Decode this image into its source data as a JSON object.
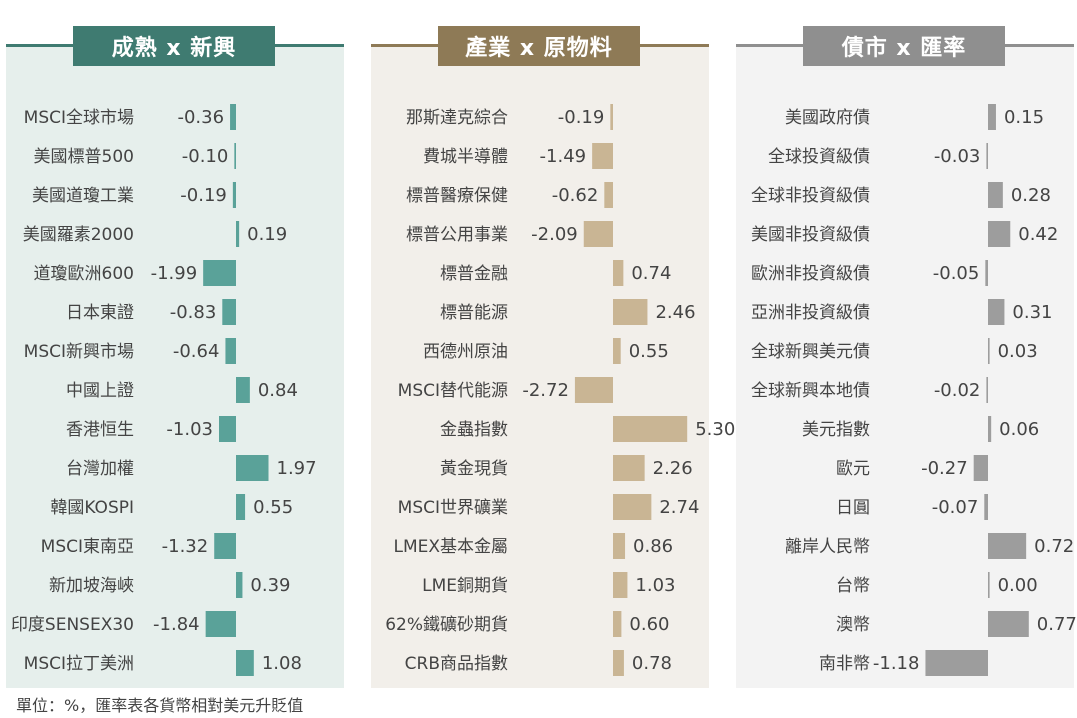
{
  "colors": {
    "panel1_accent": "#3f7b71",
    "panel1_bar": "#5aa299",
    "panel1_bg": "#e6efec",
    "panel2_accent": "#8e7a56",
    "panel2_bar": "#c9b594",
    "panel2_bg": "#f2efea",
    "panel3_accent": "#8f8f8f",
    "panel3_bar": "#9d9d9d",
    "panel3_bg": "#f3f3f3"
  },
  "footnote": "單位：%，匯率表各貨幣相對美元升貶值",
  "chart_data": [
    {
      "type": "bar",
      "orientation": "horizontal",
      "title": "成熟 x 新興",
      "categories": [
        "MSCI全球市場",
        "美國標普500",
        "美國道瓊工業",
        "美國羅素2000",
        "道瓊歐洲600",
        "日本東證",
        "MSCI新興市場",
        "中國上證",
        "香港恒生",
        "台灣加權",
        "韓國KOSPI",
        "MSCI東南亞",
        "新加坡海峽",
        "印度SENSEX30",
        "MSCI拉丁美洲"
      ],
      "values": [
        -0.36,
        -0.1,
        -0.19,
        0.19,
        -1.99,
        -0.83,
        -0.64,
        0.84,
        -1.03,
        1.97,
        0.55,
        -1.32,
        0.39,
        -1.84,
        1.08
      ],
      "labels": [
        "-0.36",
        "-0.10",
        "-0.19",
        "0.19",
        "-1.99",
        "-0.83",
        "-0.64",
        "0.84",
        "-1.03",
        "1.97",
        "0.55",
        "-1.32",
        "0.39",
        "-1.84",
        "1.08"
      ]
    },
    {
      "type": "bar",
      "orientation": "horizontal",
      "title": "產業 x 原物料",
      "categories": [
        "那斯達克綜合",
        "費城半導體",
        "標普醫療保健",
        "標普公用事業",
        "標普金融",
        "標普能源",
        "西德州原油",
        "MSCI替代能源",
        "金蟲指數",
        "黃金現貨",
        "MSCI世界礦業",
        "LMEX基本金屬",
        "LME銅期貨",
        "62%鐵礦砂期貨",
        "CRB商品指數"
      ],
      "values": [
        -0.19,
        -1.49,
        -0.62,
        -2.09,
        0.74,
        2.46,
        0.55,
        -2.72,
        5.3,
        2.26,
        2.74,
        0.86,
        1.03,
        0.6,
        0.78
      ],
      "labels": [
        "-0.19",
        "-1.49",
        "-0.62",
        "-2.09",
        "0.74",
        "2.46",
        "0.55",
        "-2.72",
        "5.30",
        "2.26",
        "2.74",
        "0.86",
        "1.03",
        "0.60",
        "0.78"
      ]
    },
    {
      "type": "bar",
      "orientation": "horizontal",
      "title": "債市 x 匯率",
      "categories": [
        "美國政府債",
        "全球投資級債",
        "全球非投資級債",
        "美國非投資級債",
        "歐洲非投資級債",
        "亞洲非投資級債",
        "全球新興美元債",
        "全球新興本地債",
        "美元指數",
        "歐元",
        "日圓",
        "離岸人民幣",
        "台幣",
        "澳幣",
        "南非幣"
      ],
      "values": [
        0.15,
        -0.03,
        0.28,
        0.42,
        -0.05,
        0.31,
        0.03,
        -0.02,
        0.06,
        -0.27,
        -0.07,
        0.72,
        0.0,
        0.77,
        -1.18
      ],
      "labels": [
        "0.15",
        "-0.03",
        "0.28",
        "0.42",
        "-0.05",
        "0.31",
        "0.03",
        "-0.02",
        "0.06",
        "-0.27",
        "-0.07",
        "0.72",
        "0.00",
        "0.77",
        "-1.18"
      ]
    }
  ]
}
